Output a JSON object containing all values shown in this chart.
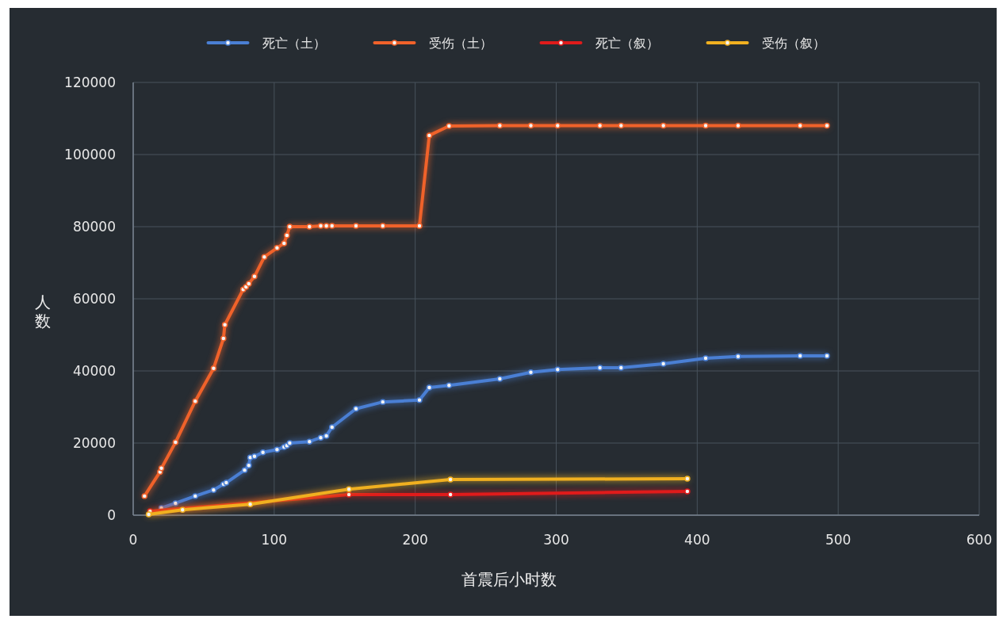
{
  "chart_data": {
    "type": "line",
    "xlabel": "首震后小时数",
    "ylabel": "人数",
    "xlim": [
      0,
      600
    ],
    "xticks": [
      0,
      100,
      200,
      300,
      400,
      500,
      600
    ],
    "ylim": [
      0,
      120000
    ],
    "yticks": [
      0,
      20000,
      40000,
      60000,
      80000,
      100000,
      120000
    ],
    "grid": true,
    "legend": "top",
    "marker": "circle",
    "line_style": "solid",
    "series": [
      {
        "name": "死亡（土）",
        "color": "#4a7fd4",
        "x": [
          20,
          30,
          44,
          57,
          64,
          66,
          79,
          82,
          83,
          86,
          92,
          102,
          107,
          109,
          111,
          125,
          133,
          137,
          141,
          158,
          177,
          203,
          210,
          224,
          260,
          282,
          301,
          331,
          346,
          376,
          406,
          429,
          473,
          492
        ],
        "values": [
          2000,
          3300,
          5300,
          7000,
          8600,
          9000,
          12500,
          13800,
          16000,
          16300,
          17400,
          18200,
          18900,
          19300,
          20000,
          20400,
          21500,
          22000,
          24400,
          29500,
          31400,
          31900,
          35400,
          36000,
          37800,
          39600,
          40400,
          40900,
          40900,
          42000,
          43500,
          44000,
          44200,
          44200
        ]
      },
      {
        "name": "受伤（土）",
        "color": "#f0622a",
        "x": [
          8,
          19,
          20,
          30,
          44,
          57,
          64,
          65,
          78,
          80,
          82,
          86,
          93,
          102,
          107,
          109,
          111,
          125,
          133,
          137,
          141,
          158,
          177,
          203,
          210,
          224,
          260,
          282,
          301,
          331,
          346,
          376,
          406,
          429,
          473,
          492
        ],
        "values": [
          5300,
          12000,
          13000,
          20200,
          31600,
          40700,
          49000,
          52800,
          62600,
          63300,
          64200,
          66200,
          71600,
          74100,
          75400,
          77600,
          80000,
          80000,
          80200,
          80200,
          80200,
          80200,
          80200,
          80200,
          105300,
          107900,
          108000,
          108000,
          108000,
          108000,
          108000,
          108000,
          108000,
          108000,
          108000,
          108000
        ]
      },
      {
        "name": "死亡（叙）",
        "color": "#e01b1b",
        "x": [
          12,
          153,
          225,
          393
        ],
        "values": [
          1100,
          5700,
          5700,
          6600
        ]
      },
      {
        "name": "受伤（叙）",
        "color": "#f0b020",
        "x": [
          11,
          35,
          83,
          153,
          225,
          393
        ],
        "values": [
          200,
          1500,
          3000,
          7200,
          9900,
          10100
        ]
      }
    ]
  }
}
